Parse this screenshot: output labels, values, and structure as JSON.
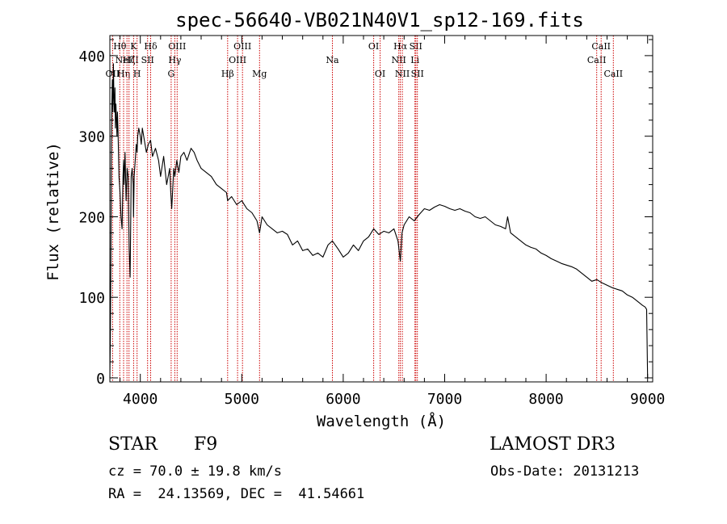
{
  "chart_data": {
    "type": "line",
    "title": "spec-56640-VB021N40V1_sp12-169.fits",
    "xlabel": "Wavelength (Å)",
    "ylabel": "Flux (relative)",
    "xlim": [
      3700,
      9050
    ],
    "ylim": [
      -5,
      425
    ],
    "xticks": [
      4000,
      5000,
      6000,
      7000,
      8000,
      9000
    ],
    "yticks": [
      0,
      100,
      200,
      300,
      400
    ],
    "line_color": "#000000",
    "marker_color": "#cc0000",
    "series": [
      {
        "name": "spectrum",
        "x": [
          3700,
          3705,
          3710,
          3715,
          3720,
          3725,
          3730,
          3735,
          3740,
          3745,
          3750,
          3755,
          3760,
          3765,
          3770,
          3775,
          3780,
          3785,
          3790,
          3800,
          3810,
          3820,
          3830,
          3835,
          3840,
          3850,
          3860,
          3870,
          3880,
          3890,
          3900,
          3910,
          3920,
          3930,
          3933,
          3940,
          3950,
          3960,
          3968,
          3975,
          3985,
          4000,
          4010,
          4020,
          4040,
          4060,
          4080,
          4101,
          4120,
          4150,
          4180,
          4200,
          4230,
          4260,
          4290,
          4300,
          4310,
          4330,
          4340,
          4360,
          4380,
          4400,
          4430,
          4460,
          4500,
          4530,
          4560,
          4600,
          4650,
          4700,
          4750,
          4800,
          4850,
          4861,
          4900,
          4950,
          5000,
          5050,
          5100,
          5150,
          5175,
          5200,
          5250,
          5300,
          5350,
          5400,
          5450,
          5500,
          5550,
          5600,
          5650,
          5700,
          5750,
          5800,
          5850,
          5893,
          5950,
          6000,
          6050,
          6100,
          6150,
          6200,
          6250,
          6300,
          6350,
          6400,
          6450,
          6500,
          6540,
          6563,
          6580,
          6600,
          6650,
          6700,
          6750,
          6800,
          6850,
          6900,
          6950,
          7000,
          7050,
          7100,
          7150,
          7200,
          7250,
          7300,
          7350,
          7400,
          7450,
          7500,
          7550,
          7600,
          7620,
          7650,
          7700,
          7750,
          7800,
          7850,
          7900,
          7950,
          8000,
          8050,
          8100,
          8150,
          8200,
          8250,
          8300,
          8350,
          8400,
          8450,
          8500,
          8550,
          8600,
          8650,
          8700,
          8750,
          8800,
          8850,
          8900,
          8950,
          8975,
          8990,
          9000
        ],
        "y": [
          0,
          50,
          150,
          290,
          340,
          370,
          330,
          390,
          350,
          330,
          360,
          310,
          340,
          320,
          300,
          330,
          310,
          280,
          250,
          230,
          200,
          185,
          250,
          270,
          240,
          280,
          220,
          260,
          250,
          160,
          125,
          250,
          260,
          240,
          200,
          250,
          270,
          290,
          280,
          300,
          310,
          300,
          290,
          310,
          295,
          280,
          290,
          295,
          275,
          285,
          270,
          250,
          275,
          240,
          260,
          230,
          210,
          260,
          250,
          270,
          255,
          275,
          280,
          270,
          285,
          280,
          270,
          260,
          255,
          250,
          240,
          235,
          230,
          220,
          225,
          215,
          220,
          210,
          205,
          195,
          180,
          200,
          190,
          185,
          180,
          182,
          178,
          165,
          170,
          158,
          160,
          152,
          155,
          150,
          165,
          170,
          160,
          150,
          155,
          165,
          158,
          170,
          175,
          185,
          178,
          182,
          180,
          185,
          170,
          145,
          180,
          190,
          200,
          195,
          203,
          210,
          208,
          212,
          215,
          213,
          210,
          208,
          210,
          207,
          205,
          200,
          198,
          200,
          195,
          190,
          188,
          185,
          200,
          180,
          175,
          170,
          165,
          162,
          160,
          155,
          152,
          148,
          145,
          142,
          140,
          138,
          135,
          130,
          125,
          120,
          122,
          118,
          115,
          112,
          110,
          108,
          103,
          100,
          95,
          90,
          88,
          85,
          0
        ]
      }
    ],
    "lines": [
      {
        "x": 3727,
        "label": "OII",
        "row": 2
      },
      {
        "x": 3798,
        "label": "Hθ",
        "row": 0
      },
      {
        "x": 3835,
        "label": "Hη",
        "row": 2
      },
      {
        "x": 3869,
        "label": "NeIII",
        "row": 1
      },
      {
        "x": 3889,
        "label": "Hζ",
        "row": 1
      },
      {
        "x": 3934,
        "label": "K",
        "row": 0
      },
      {
        "x": 3968,
        "label": "H",
        "row": 2
      },
      {
        "x": 4072,
        "label": "SII",
        "row": 1
      },
      {
        "x": 4102,
        "label": "Hδ",
        "row": 0
      },
      {
        "x": 4304,
        "label": "G",
        "row": 2
      },
      {
        "x": 4340,
        "label": "Hγ",
        "row": 1
      },
      {
        "x": 4363,
        "label": "OIII",
        "row": 0
      },
      {
        "x": 4861,
        "label": "Hβ",
        "row": 2
      },
      {
        "x": 4959,
        "label": "OIII",
        "row": 1
      },
      {
        "x": 5007,
        "label": "OIII",
        "row": 0
      },
      {
        "x": 5175,
        "label": "Mg",
        "row": 2
      },
      {
        "x": 5893,
        "label": "Na",
        "row": 1
      },
      {
        "x": 6300,
        "label": "OI",
        "row": 0
      },
      {
        "x": 6364,
        "label": "OI",
        "row": 2
      },
      {
        "x": 6548,
        "label": "NII",
        "row": 1
      },
      {
        "x": 6563,
        "label": "Hα",
        "row": 0
      },
      {
        "x": 6583,
        "label": "NII",
        "row": 2
      },
      {
        "x": 6707,
        "label": "Li",
        "row": 1
      },
      {
        "x": 6716,
        "label": "SII",
        "row": 0
      },
      {
        "x": 6731,
        "label": "SII",
        "row": 2
      },
      {
        "x": 8498,
        "label": "CaII",
        "row": 1
      },
      {
        "x": 8542,
        "label": "CaII",
        "row": 0
      },
      {
        "x": 8662,
        "label": "CaII",
        "row": 2
      }
    ]
  },
  "info": {
    "class": "STAR",
    "subclass": "F9",
    "survey": "LAMOST DR3",
    "cz": "cz = 70.0 ± 19.8 km/s",
    "obs_date": "Obs-Date: 20131213",
    "coords": "RA =  24.13569, DEC =  41.54661"
  }
}
